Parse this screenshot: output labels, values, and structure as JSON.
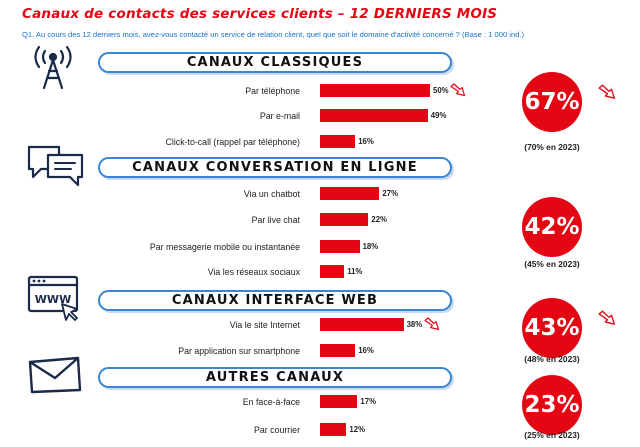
{
  "title": "Canaux de contacts des services clients – 12 DERNIERS MOIS",
  "question": "Q1. Au cours des 12 derniers mois, avez-vous contacté un service de relation client, quel que soit le domaine d'activité concerné ? (Base : 1 000 ind.)",
  "colors": {
    "accent": "#e30613",
    "frame": "#3a86d4",
    "question": "#1a73c9"
  },
  "chart_data": {
    "type": "bar",
    "orientation": "horizontal",
    "groups": [
      {
        "name": "CANAUX CLASSIQUES",
        "icon": "antenna-icon",
        "total": "67%",
        "previous": "(70% en 2023)",
        "total_trend": "down",
        "items": [
          {
            "label": "Par téléphone",
            "value": 50,
            "value_label": "50%",
            "trend": "down"
          },
          {
            "label": "Par e-mail",
            "value": 49,
            "value_label": "49%"
          },
          {
            "label": "Click-to-call (rappel par téléphone)",
            "value": 16,
            "value_label": "16%"
          }
        ]
      },
      {
        "name": "CANAUX CONVERSATION EN LIGNE",
        "icon": "chat-bubbles-icon",
        "total": "42%",
        "previous": "(45% en 2023)",
        "items": [
          {
            "label": "Via un chatbot",
            "value": 27,
            "value_label": "27%"
          },
          {
            "label": "Par live chat",
            "value": 22,
            "value_label": "22%"
          },
          {
            "label": "Par messagerie mobile ou instantanée",
            "value": 18,
            "value_label": "18%"
          },
          {
            "label": "Via les réseaux sociaux",
            "value": 11,
            "value_label": "11%"
          }
        ]
      },
      {
        "name": "CANAUX INTERFACE WEB",
        "icon": "web-browser-icon",
        "total": "43%",
        "previous": "(48% en 2023)",
        "total_trend": "down",
        "items": [
          {
            "label": "Via le site Internet",
            "value": 38,
            "value_label": "38%",
            "trend": "down"
          },
          {
            "label": "Par application sur smartphone",
            "value": 16,
            "value_label": "16%"
          }
        ]
      },
      {
        "name": "AUTRES CANAUX",
        "icon": "envelope-icon",
        "total": "23%",
        "previous": "(25% en 2023)",
        "items": [
          {
            "label": "En face-à-face",
            "value": 17,
            "value_label": "17%"
          },
          {
            "label": "Par courrier",
            "value": 12,
            "value_label": "12%"
          }
        ]
      }
    ]
  }
}
